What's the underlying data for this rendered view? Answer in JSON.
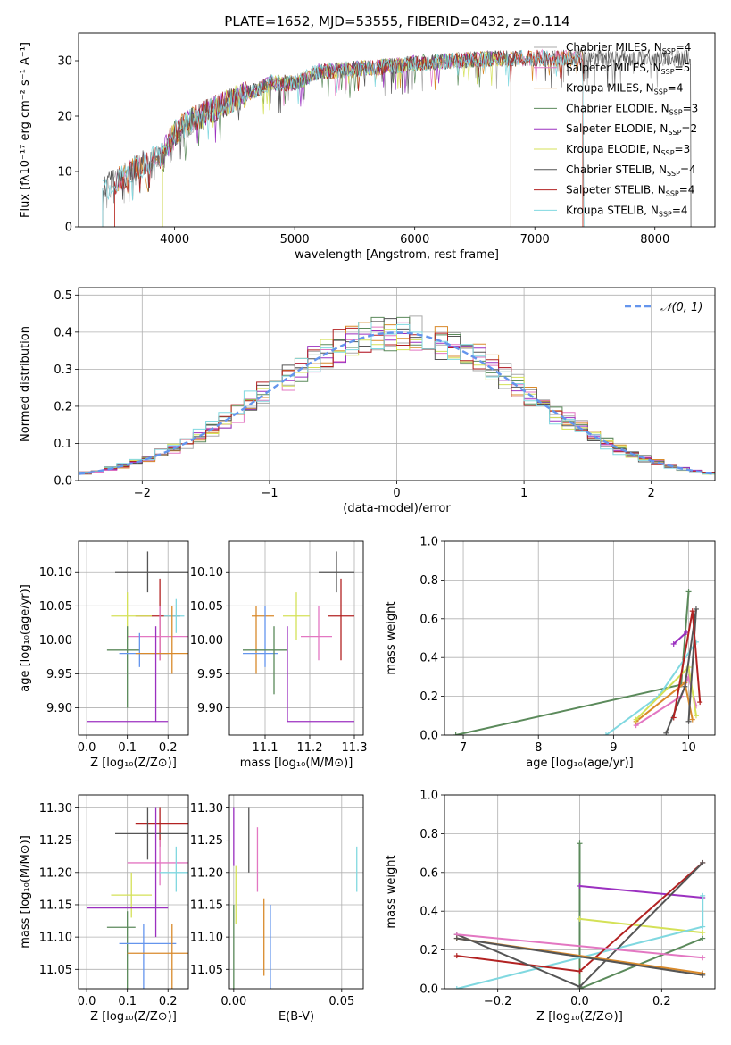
{
  "figure_title": "PLATE=1652, MJD=53555, FIBERID=0432, z=0.114",
  "colors": {
    "chabrier_miles": "#aaaaaa",
    "salpeter_miles": "#e377c2",
    "kroupa_miles": "#d98a2b",
    "chabrier_elodie": "#5b8a5b",
    "salpeter_elodie": "#9b30c0",
    "kroupa_elodie": "#d4e157",
    "chabrier_stelib": "#555555",
    "salpeter_stelib": "#b22222",
    "kroupa_stelib": "#80d8e0",
    "gauss": "#6495ed",
    "extra_blue": "#6495ed"
  },
  "chart_data": [
    {
      "id": "spectrum",
      "type": "line",
      "xlabel": "wavelength [Angstrom, rest frame]",
      "ylabel": "Flux [fλ10⁻¹⁷ erg cm⁻² s⁻¹ A⁻¹]",
      "xlim": [
        3200,
        8500
      ],
      "ylim": [
        0,
        35
      ],
      "xticks": [
        4000,
        5000,
        6000,
        7000,
        8000
      ],
      "yticks": [
        0,
        10,
        20,
        30
      ],
      "continuum": [
        [
          3400,
          7
        ],
        [
          3500,
          8
        ],
        [
          3700,
          11
        ],
        [
          3900,
          13
        ],
        [
          4000,
          17
        ],
        [
          4200,
          20
        ],
        [
          4400,
          22
        ],
        [
          4600,
          24
        ],
        [
          4800,
          26
        ],
        [
          5000,
          26
        ],
        [
          5200,
          28
        ],
        [
          5500,
          28.5
        ],
        [
          5800,
          29
        ],
        [
          6000,
          29.5
        ],
        [
          6300,
          30
        ],
        [
          6600,
          30.3
        ],
        [
          7000,
          30.5
        ],
        [
          7500,
          30.5
        ],
        [
          8000,
          30.5
        ],
        [
          8300,
          30.5
        ]
      ],
      "legend_placement": "right",
      "legend": [
        {
          "label": "Chabrier MILES, N",
          "sub": "SSP",
          "suffix": "=4",
          "color_key": "chabrier_miles"
        },
        {
          "label": "Salpeter MILES, N",
          "sub": "SSP",
          "suffix": "=5",
          "color_key": "salpeter_miles"
        },
        {
          "label": "Kroupa MILES, N",
          "sub": "SSP",
          "suffix": "=4",
          "color_key": "kroupa_miles"
        },
        {
          "label": "Chabrier ELODIE, N",
          "sub": "SSP",
          "suffix": "=3",
          "color_key": "chabrier_elodie"
        },
        {
          "label": "Salpeter ELODIE, N",
          "sub": "SSP",
          "suffix": "=2",
          "color_key": "salpeter_elodie"
        },
        {
          "label": "Kroupa ELODIE, N",
          "sub": "SSP",
          "suffix": "=3",
          "color_key": "kroupa_elodie"
        },
        {
          "label": "Chabrier STELIB, N",
          "sub": "SSP",
          "suffix": "=4",
          "color_key": "chabrier_stelib"
        },
        {
          "label": "Salpeter STELIB, N",
          "sub": "SSP",
          "suffix": "=4",
          "color_key": "salpeter_stelib"
        },
        {
          "label": "Kroupa STELIB, N",
          "sub": "SSP",
          "suffix": "=4",
          "color_key": "kroupa_stelib"
        }
      ]
    },
    {
      "id": "residuals",
      "type": "line",
      "xlabel": "(data-model)/error",
      "ylabel": "Normed distribution",
      "xlim": [
        -2.5,
        2.5
      ],
      "ylim": [
        0,
        0.52
      ],
      "xticks": [
        -2,
        -1,
        0,
        1,
        2
      ],
      "yticks": [
        0.0,
        0.1,
        0.2,
        0.3,
        0.4,
        0.5
      ],
      "grid": true,
      "legend_placement": "top-right",
      "legend": [
        {
          "label": "𝒩(0, 1)",
          "color_key": "gauss"
        }
      ]
    },
    {
      "id": "age_vs_Z",
      "type": "scatter",
      "xlabel": "Z [log₁₀(Z/Z⊙)]",
      "ylabel": "age  [log₁₀(age/yr)]",
      "xlim": [
        -0.02,
        0.25
      ],
      "ylim": [
        9.86,
        10.145
      ],
      "xticks": [
        0.0,
        0.1,
        0.2
      ],
      "yticks": [
        9.9,
        9.95,
        10.0,
        10.05,
        10.1
      ],
      "grid": true,
      "points": [
        {
          "c": "chabrier_stelib",
          "x": 0.15,
          "xe": [
            0.07,
            0.25
          ],
          "y": 10.1,
          "ye": [
            10.07,
            10.13
          ]
        },
        {
          "c": "salpeter_stelib",
          "x": 0.18,
          "xe": [
            0.12,
            0.23
          ],
          "y": 10.035,
          "ye": [
            9.97,
            10.09
          ]
        },
        {
          "c": "kroupa_elodie",
          "x": 0.1,
          "xe": [
            0.06,
            0.16
          ],
          "y": 10.035,
          "ye": [
            10.0,
            10.07
          ]
        },
        {
          "c": "kroupa_stelib",
          "x": 0.22,
          "xe": [
            0.19,
            0.24
          ],
          "y": 10.035,
          "ye": [
            10.01,
            10.06
          ]
        },
        {
          "c": "salpeter_miles",
          "x": 0.18,
          "xe": [
            0.1,
            0.25
          ],
          "y": 10.005,
          "ye": [
            9.97,
            10.05
          ]
        },
        {
          "c": "chabrier_elodie",
          "x": 0.1,
          "xe": [
            0.05,
            0.13
          ],
          "y": 9.985,
          "ye": [
            9.9,
            10.02
          ]
        },
        {
          "c": "extra_blue",
          "x": 0.13,
          "xe": [
            0.08,
            0.2
          ],
          "y": 9.98,
          "ye": [
            9.96,
            10.01
          ]
        },
        {
          "c": "kroupa_miles",
          "x": 0.21,
          "xe": [
            0.12,
            0.25
          ],
          "y": 9.98,
          "ye": [
            9.95,
            10.05
          ]
        },
        {
          "c": "salpeter_elodie",
          "x": 0.17,
          "xe": [
            0.0,
            0.2
          ],
          "y": 9.88,
          "ye": [
            9.88,
            10.02
          ]
        }
      ]
    },
    {
      "id": "age_vs_mass",
      "type": "scatter",
      "xlabel": "mass [log₁₀(M/M⊙)]",
      "ylabel": "",
      "xlim": [
        11.02,
        11.32
      ],
      "ylim": [
        9.86,
        10.145
      ],
      "xticks": [
        11.1,
        11.2,
        11.3
      ],
      "yticks": [
        9.9,
        9.95,
        10.0,
        10.05,
        10.1
      ],
      "grid": true,
      "points": [
        {
          "c": "chabrier_stelib",
          "x": 11.26,
          "xe": [
            11.22,
            11.3
          ],
          "y": 10.1,
          "ye": [
            10.07,
            10.13
          ]
        },
        {
          "c": "salpeter_stelib",
          "x": 11.27,
          "xe": [
            11.24,
            11.3
          ],
          "y": 10.035,
          "ye": [
            9.97,
            10.09
          ]
        },
        {
          "c": "kroupa_elodie",
          "x": 11.17,
          "xe": [
            11.14,
            11.2
          ],
          "y": 10.035,
          "ye": [
            10.0,
            10.07
          ]
        },
        {
          "c": "kroupa_miles",
          "x": 11.08,
          "xe": [
            11.07,
            11.12
          ],
          "y": 10.035,
          "ye": [
            9.95,
            10.05
          ]
        },
        {
          "c": "salpeter_miles",
          "x": 11.22,
          "xe": [
            11.18,
            11.25
          ],
          "y": 10.005,
          "ye": [
            9.97,
            10.05
          ]
        },
        {
          "c": "extra_blue",
          "x": 11.1,
          "xe": [
            11.05,
            11.13
          ],
          "y": 9.98,
          "ye": [
            9.96,
            10.05
          ]
        },
        {
          "c": "chabrier_elodie",
          "x": 11.12,
          "xe": [
            11.05,
            11.15
          ],
          "y": 9.985,
          "ye": [
            9.92,
            10.02
          ]
        },
        {
          "c": "salpeter_elodie",
          "x": 11.15,
          "xe": [
            11.15,
            11.3
          ],
          "y": 9.88,
          "ye": [
            9.88,
            10.02
          ]
        }
      ]
    },
    {
      "id": "weight_vs_age",
      "type": "line",
      "xlabel": "age  [log₁₀(age/yr)]",
      "ylabel": "mass weight",
      "xlim": [
        6.75,
        10.35
      ],
      "ylim": [
        0,
        1.0
      ],
      "xticks": [
        7,
        8,
        9,
        10
      ],
      "yticks": [
        0.0,
        0.2,
        0.4,
        0.6,
        0.8,
        1.0
      ],
      "grid": true,
      "series": [
        {
          "c": "chabrier_elodie",
          "points": [
            [
              6.9,
              0.0
            ],
            [
              9.9,
              0.26
            ],
            [
              10.0,
              0.74
            ]
          ]
        },
        {
          "c": "salpeter_elodie",
          "points": [
            [
              9.8,
              0.47
            ],
            [
              9.97,
              0.53
            ]
          ]
        },
        {
          "c": "kroupa_stelib",
          "points": [
            [
              8.9,
              0.0
            ],
            [
              9.6,
              0.2
            ],
            [
              10.1,
              0.48
            ]
          ]
        },
        {
          "c": "salpeter_miles",
          "points": [
            [
              9.3,
              0.05
            ],
            [
              9.9,
              0.2
            ],
            [
              10.0,
              0.3
            ],
            [
              10.1,
              0.15
            ]
          ]
        },
        {
          "c": "kroupa_miles",
          "points": [
            [
              9.3,
              0.07
            ],
            [
              9.95,
              0.27
            ],
            [
              10.05,
              0.08
            ]
          ]
        },
        {
          "c": "kroupa_elodie",
          "points": [
            [
              9.3,
              0.08
            ],
            [
              10.0,
              0.35
            ],
            [
              10.1,
              0.1
            ]
          ]
        },
        {
          "c": "chabrier_stelib",
          "points": [
            [
              9.7,
              0.01
            ],
            [
              9.95,
              0.25
            ],
            [
              10.1,
              0.65
            ],
            [
              10.0,
              0.07
            ]
          ]
        },
        {
          "c": "salpeter_stelib",
          "points": [
            [
              9.8,
              0.09
            ],
            [
              10.05,
              0.64
            ],
            [
              10.15,
              0.17
            ]
          ]
        }
      ]
    },
    {
      "id": "mass_vs_Z",
      "type": "scatter",
      "xlabel": "Z [log₁₀(Z/Z⊙)]",
      "ylabel": "mass [log₁₀(M/M⊙)]",
      "xlim": [
        -0.02,
        0.25
      ],
      "ylim": [
        11.02,
        11.32
      ],
      "xticks": [
        0.0,
        0.1,
        0.2
      ],
      "yticks": [
        11.05,
        11.1,
        11.15,
        11.2,
        11.25,
        11.3
      ],
      "grid": true,
      "points": [
        {
          "c": "salpeter_stelib",
          "x": 0.18,
          "xe": [
            0.12,
            0.25
          ],
          "y": 11.275,
          "ye": [
            11.24,
            11.3
          ]
        },
        {
          "c": "chabrier_stelib",
          "x": 0.15,
          "xe": [
            0.07,
            0.25
          ],
          "y": 11.26,
          "ye": [
            11.22,
            11.3
          ]
        },
        {
          "c": "salpeter_miles",
          "x": 0.18,
          "xe": [
            0.1,
            0.25
          ],
          "y": 11.215,
          "ye": [
            11.18,
            11.25
          ]
        },
        {
          "c": "kroupa_stelib",
          "x": 0.22,
          "xe": [
            0.18,
            0.25
          ],
          "y": 11.2,
          "ye": [
            11.17,
            11.24
          ]
        },
        {
          "c": "kroupa_elodie",
          "x": 0.11,
          "xe": [
            0.06,
            0.16
          ],
          "y": 11.165,
          "ye": [
            11.13,
            11.2
          ]
        },
        {
          "c": "salpeter_elodie",
          "x": 0.17,
          "xe": [
            0.0,
            0.2
          ],
          "y": 11.145,
          "ye": [
            11.1,
            11.3
          ]
        },
        {
          "c": "chabrier_elodie",
          "x": 0.1,
          "xe": [
            0.05,
            0.12
          ],
          "y": 11.115,
          "ye": [
            11.02,
            11.14
          ]
        },
        {
          "c": "extra_blue",
          "x": 0.14,
          "xe": [
            0.08,
            0.22
          ],
          "y": 11.09,
          "ye": [
            11.02,
            11.12
          ]
        },
        {
          "c": "kroupa_miles",
          "x": 0.21,
          "xe": [
            0.1,
            0.26
          ],
          "y": 11.075,
          "ye": [
            11.02,
            11.12
          ]
        }
      ]
    },
    {
      "id": "mass_vs_ebv",
      "type": "scatter",
      "xlabel": "E(B-V)",
      "ylabel": "",
      "xlim": [
        -0.002,
        0.06
      ],
      "ylim": [
        11.02,
        11.32
      ],
      "xticks": [
        0.0,
        0.05
      ],
      "yticks": [
        11.05,
        11.1,
        11.15,
        11.2,
        11.25,
        11.3
      ],
      "grid": true,
      "points": [
        {
          "c": "salpeter_elodie",
          "x": 0.0,
          "y": 11.26,
          "ye": [
            11.21,
            11.3
          ]
        },
        {
          "c": "chabrier_stelib",
          "x": 0.007,
          "y": 11.25,
          "ye": [
            11.2,
            11.3
          ]
        },
        {
          "c": "salpeter_miles",
          "x": 0.011,
          "y": 11.22,
          "ye": [
            11.17,
            11.27
          ]
        },
        {
          "c": "kroupa_elodie",
          "x": 0.001,
          "y": 11.165,
          "ye": [
            11.12,
            11.21
          ]
        },
        {
          "c": "chabrier_elodie",
          "x": 0.0,
          "y": 11.1,
          "ye": [
            11.02,
            11.15
          ]
        },
        {
          "c": "kroupa_miles",
          "x": 0.014,
          "y": 11.1,
          "ye": [
            11.04,
            11.16
          ]
        },
        {
          "c": "extra_blue",
          "x": 0.017,
          "y": 11.09,
          "ye": [
            11.02,
            11.15
          ]
        },
        {
          "c": "kroupa_stelib",
          "x": 0.057,
          "y": 11.205,
          "ye": [
            11.17,
            11.24
          ]
        }
      ]
    },
    {
      "id": "weight_vs_Z",
      "type": "line",
      "xlabel": "Z [log₁₀(Z/Z⊙)]",
      "ylabel": "mass weight",
      "xlim": [
        -0.33,
        0.33
      ],
      "ylim": [
        0,
        1.0
      ],
      "xticks": [
        -0.2,
        0.0,
        0.2
      ],
      "yticks": [
        0.0,
        0.2,
        0.4,
        0.6,
        0.8,
        1.0
      ],
      "grid": true,
      "series": [
        {
          "c": "chabrier_elodie",
          "points": [
            [
              0.0,
              0.75
            ],
            [
              0.0,
              0.0
            ],
            [
              0.3,
              0.26
            ]
          ]
        },
        {
          "c": "salpeter_elodie",
          "points": [
            [
              0.0,
              0.53
            ],
            [
              0.3,
              0.47
            ]
          ]
        },
        {
          "c": "kroupa_elodie",
          "points": [
            [
              0.0,
              0.36
            ],
            [
              0.3,
              0.29
            ]
          ]
        },
        {
          "c": "kroupa_stelib",
          "points": [
            [
              -0.3,
              0.0
            ],
            [
              0.3,
              0.32
            ],
            [
              0.3,
              0.48
            ]
          ]
        },
        {
          "c": "salpeter_stelib",
          "points": [
            [
              -0.3,
              0.17
            ],
            [
              0.0,
              0.09
            ],
            [
              0.3,
              0.65
            ]
          ]
        },
        {
          "c": "chabrier_stelib",
          "points": [
            [
              -0.3,
              0.28
            ],
            [
              0.0,
              0.01
            ],
            [
              0.3,
              0.65
            ]
          ]
        },
        {
          "c": "salpeter_miles",
          "points": [
            [
              -0.3,
              0.28
            ],
            [
              0.3,
              0.16
            ]
          ]
        },
        {
          "c": "kroupa_miles",
          "points": [
            [
              -0.3,
              0.26
            ],
            [
              0.3,
              0.08
            ]
          ]
        },
        {
          "c": "chabrier_stelib",
          "points": [
            [
              -0.3,
              0.26
            ],
            [
              0.3,
              0.07
            ]
          ]
        }
      ]
    }
  ]
}
